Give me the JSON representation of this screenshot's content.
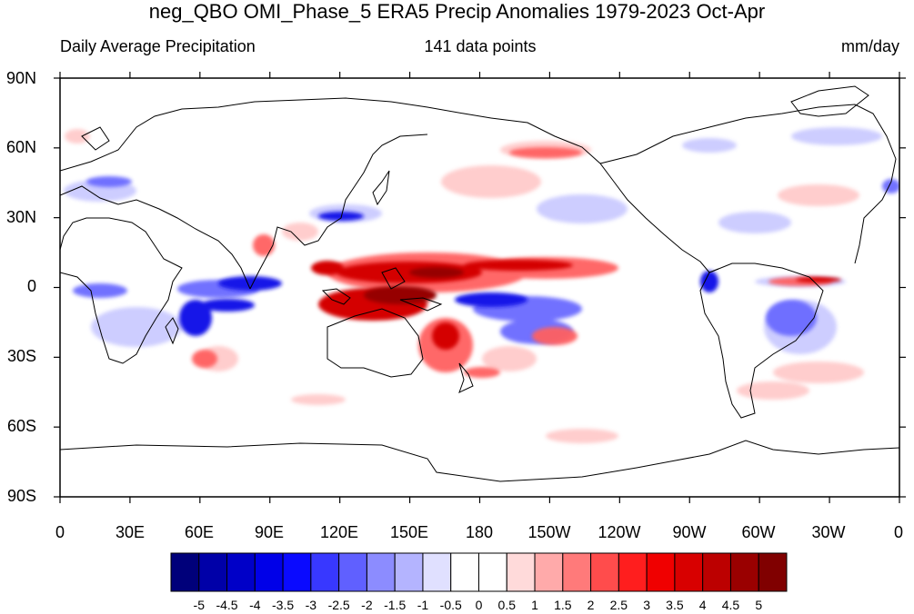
{
  "title": "neg_QBO OMI_Phase_5 ERA5 Precip Anomalies 1979-2023 Oct-Apr",
  "subtitle": {
    "left": "Daily Average Precipitation",
    "center": "141 data points",
    "right": "mm/day"
  },
  "lat_labels": [
    "90N",
    "60N",
    "30N",
    "0",
    "30S",
    "60S",
    "90S"
  ],
  "lon_labels": [
    "0",
    "30E",
    "60E",
    "90E",
    "120E",
    "150E",
    "180",
    "150W",
    "120W",
    "90W",
    "60W",
    "30W",
    "0"
  ],
  "colorbar": {
    "colors": [
      "#00007a",
      "#0000a8",
      "#0000c8",
      "#0000e8",
      "#0a0aff",
      "#3838ff",
      "#6060ff",
      "#8c8cff",
      "#b4b4ff",
      "#e0e0ff",
      "#ffffff",
      "#ffffff",
      "#ffdada",
      "#ffaaaa",
      "#ff7a7a",
      "#ff4c4c",
      "#ff1e1e",
      "#f00000",
      "#d80000",
      "#bc0000",
      "#9a0000",
      "#800000"
    ],
    "labels": [
      "-5",
      "-4.5",
      "-4",
      "-3.5",
      "-3",
      "-2.5",
      "-2",
      "-1.5",
      "-1",
      "-0.5",
      "0",
      "0.5",
      "1",
      "1.5",
      "2",
      "2.5",
      "3",
      "3.5",
      "4",
      "4.5",
      "5"
    ]
  }
}
